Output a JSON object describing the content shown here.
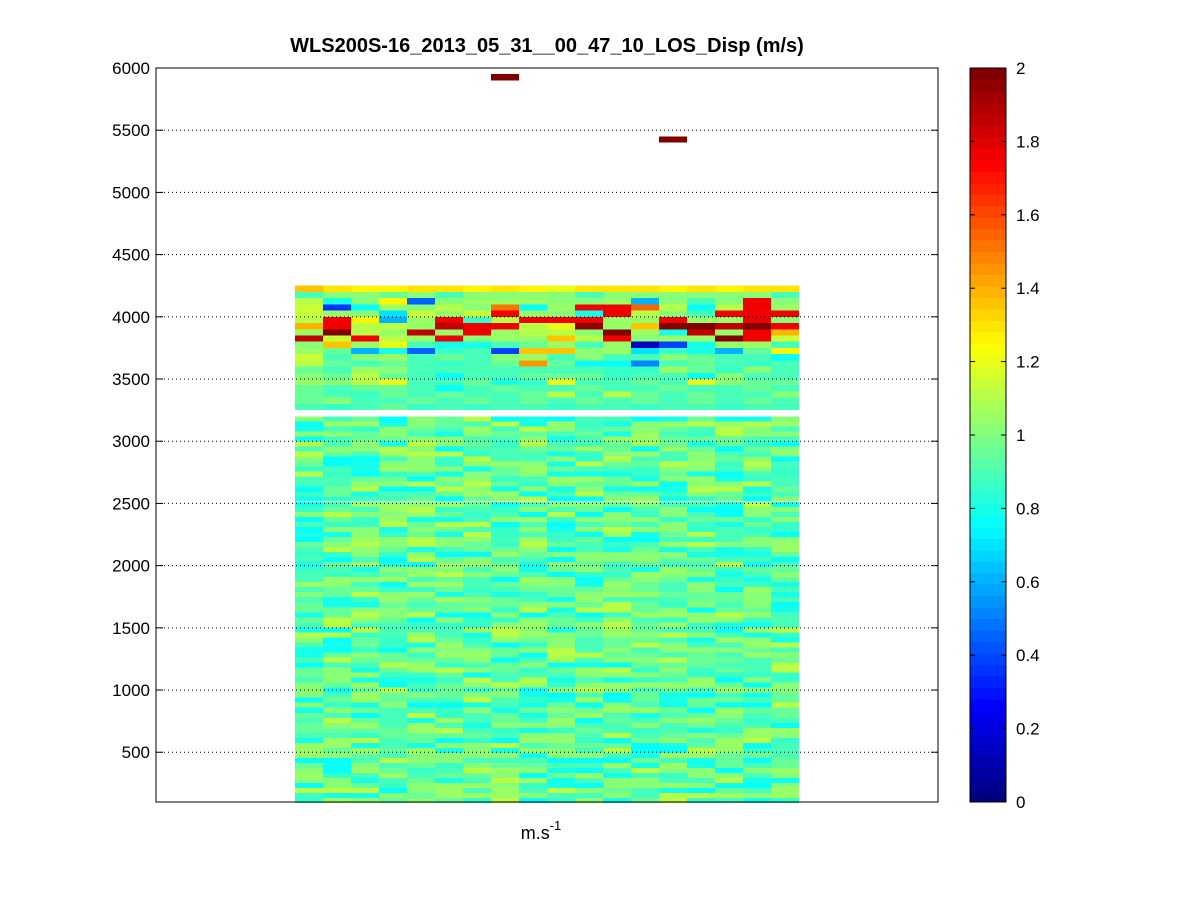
{
  "chart_data": {
    "type": "heatmap",
    "title": "WLS200S-16_2013_05_31__00_47_10_LOS_Disp (m/s)",
    "xlabel_base": "m.s",
    "xlabel_exp": "-1",
    "ylabel": "",
    "ylim": [
      100,
      6000
    ],
    "yticks": [
      "500",
      "1000",
      "1500",
      "2000",
      "2500",
      "3000",
      "3500",
      "4000",
      "4500",
      "5000",
      "5500",
      "6000"
    ],
    "ytick_values": [
      500,
      1000,
      1500,
      2000,
      2500,
      3000,
      3500,
      4000,
      4500,
      5000,
      5500,
      6000
    ],
    "grid": "horizontal dotted",
    "colorbar": {
      "min": 0,
      "max": 2,
      "colormap": "jet",
      "ticks": [
        "0",
        "0.2",
        "0.4",
        "0.6",
        "0.8",
        "1",
        "1.2",
        "1.4",
        "1.6",
        "1.8",
        "2"
      ],
      "tick_values": [
        0,
        0.2,
        0.4,
        0.6,
        0.8,
        1.0,
        1.2,
        1.4,
        1.6,
        1.8,
        2.0
      ]
    },
    "columns": 18,
    "cell_height": 50,
    "highest_row_bottom": 4200,
    "lowest_row_bottom": 100,
    "cells_from_top": [
      [
        1.35,
        1.3,
        1.25,
        1.25,
        1.3,
        1.3,
        1.25,
        1.3,
        1.25,
        1.2,
        1.3,
        1.3,
        1.3,
        1.25,
        1.3,
        1.25,
        1.3,
        1.3
      ],
      [
        0.9,
        1.0,
        1.0,
        0.95,
        1.0,
        0.9,
        1.0,
        1.0,
        1.0,
        1.0,
        0.9,
        1.0,
        1.0,
        1.0,
        1.0,
        1.0,
        1.0,
        0.9
      ],
      [
        1.1,
        0.8,
        1.0,
        1.25,
        0.45,
        1.0,
        1.05,
        1.05,
        1.05,
        1.0,
        1.0,
        1.05,
        0.6,
        1.0,
        0.9,
        1.0,
        1.75,
        1.0
      ],
      [
        1.15,
        0.35,
        0.75,
        1.05,
        1.0,
        1.1,
        1.0,
        1.5,
        0.75,
        1.05,
        1.75,
        1.75,
        1.55,
        1.1,
        0.75,
        1.1,
        1.75,
        1.05
      ],
      [
        1.15,
        1.05,
        1.0,
        0.7,
        1.15,
        1.05,
        1.15,
        1.75,
        1.05,
        1.0,
        0.8,
        1.75,
        1.1,
        1.0,
        0.9,
        1.75,
        1.75,
        1.75
      ],
      [
        1.1,
        1.75,
        1.25,
        0.6,
        1.05,
        1.75,
        0.85,
        1.1,
        1.75,
        1.75,
        1.75,
        1.05,
        1.05,
        1.75,
        1.05,
        1.05,
        1.75,
        1.0
      ],
      [
        1.4,
        1.75,
        1.1,
        1.1,
        1.05,
        1.85,
        1.75,
        1.75,
        1.1,
        1.2,
        1.95,
        1.05,
        1.35,
        2.0,
        2.0,
        1.85,
        2.0,
        1.75
      ],
      [
        1.05,
        2.0,
        1.1,
        1.05,
        1.85,
        1.05,
        1.75,
        1.05,
        1.1,
        1.1,
        1.0,
        2.0,
        1.05,
        0.8,
        1.85,
        1.05,
        1.75,
        1.4
      ],
      [
        1.85,
        1.15,
        1.75,
        1.1,
        1.05,
        1.75,
        1.0,
        1.05,
        1.05,
        1.35,
        1.1,
        1.75,
        1.0,
        1.05,
        1.05,
        2.0,
        1.75,
        1.15
      ],
      [
        1.0,
        1.35,
        1.05,
        1.2,
        0.9,
        0.8,
        0.8,
        0.9,
        0.95,
        1.05,
        0.9,
        1.05,
        0.15,
        0.4,
        0.8,
        1.05,
        1.05,
        0.9
      ],
      [
        1.05,
        0.95,
        0.6,
        0.8,
        0.45,
        0.85,
        0.9,
        0.4,
        1.35,
        1.35,
        1.0,
        1.05,
        0.7,
        0.85,
        0.8,
        0.6,
        0.95,
        1.25
      ],
      [
        1.15,
        0.9,
        1.0,
        1.05,
        0.9,
        0.95,
        0.9,
        1.0,
        1.05,
        0.9,
        1.0,
        0.9,
        0.9,
        1.0,
        0.95,
        0.9,
        0.9,
        0.75
      ],
      [
        1.1,
        0.95,
        0.9,
        0.95,
        0.9,
        0.85,
        0.9,
        0.95,
        1.45,
        0.95,
        0.75,
        0.75,
        0.5,
        0.9,
        0.95,
        0.9,
        0.85,
        0.9
      ],
      [
        0.95,
        0.9,
        1.05,
        1.0,
        0.9,
        0.9,
        0.9,
        0.9,
        0.9,
        0.9,
        0.9,
        0.85,
        0.85,
        1.05,
        0.95,
        0.85,
        1.0,
        0.9
      ],
      [
        1.0,
        0.95,
        1.1,
        0.95,
        0.9,
        0.75,
        0.9,
        0.9,
        0.95,
        0.95,
        0.95,
        0.85,
        0.9,
        0.9,
        0.75,
        1.0,
        0.9,
        0.9
      ],
      [
        1.05,
        1.0,
        1.1,
        1.2,
        0.9,
        0.9,
        0.95,
        0.8,
        0.85,
        1.2,
        0.9,
        0.9,
        0.95,
        0.9,
        1.2,
        1.0,
        0.95,
        0.95
      ],
      [
        0.95,
        0.9,
        0.95,
        0.95,
        0.9,
        0.75,
        0.9,
        0.95,
        0.9,
        0.9,
        0.95,
        0.9,
        0.9,
        0.95,
        0.9,
        0.9,
        0.95,
        0.9
      ],
      [
        0.95,
        0.9,
        0.85,
        0.95,
        0.9,
        0.95,
        0.9,
        0.9,
        0.95,
        1.1,
        0.9,
        1.1,
        0.95,
        0.9,
        0.95,
        0.9,
        0.9,
        1.0
      ],
      [
        0.95,
        1.0,
        0.9,
        0.9,
        0.95,
        0.9,
        0.95,
        0.9,
        0.95,
        0.9,
        0.95,
        0.9,
        0.95,
        0.9,
        0.95,
        0.9,
        0.95,
        0.9
      ],
      [
        0.9,
        0.85,
        0.9,
        0.95,
        0.85,
        0.9,
        0.85,
        0.9,
        0.9,
        0.85,
        0.9,
        0.9,
        0.85,
        0.9,
        0.9,
        0.85,
        0.9,
        0.9
      ]
    ],
    "speckle_rows_from_top": 13,
    "outliers": [
      {
        "column": 7,
        "y_bottom": 5900,
        "value": 2.0
      },
      {
        "column": 13,
        "y_bottom": 5400,
        "value": 2.0
      }
    ]
  }
}
